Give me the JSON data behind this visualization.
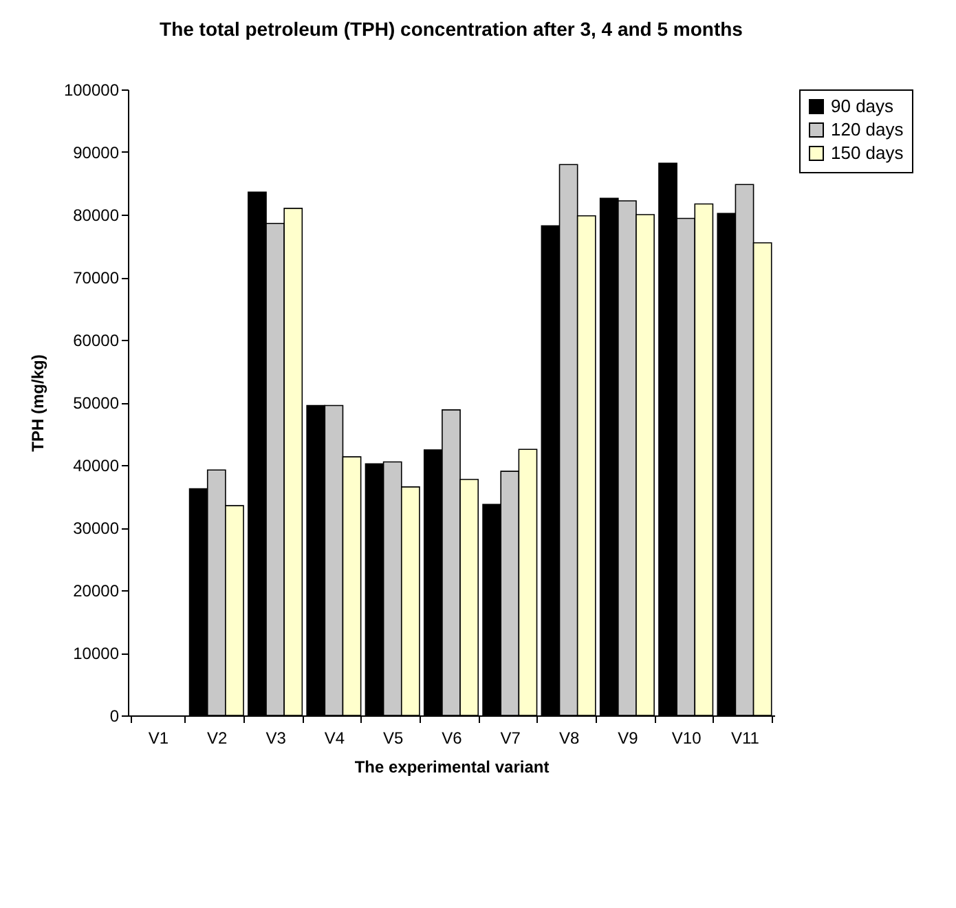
{
  "chart_data": {
    "type": "bar",
    "title": "The total petroleum (TPH) concentration after 3, 4 and 5 months",
    "xlabel": "The experimental variant",
    "ylabel": "TPH (mg/kg)",
    "categories": [
      "V1",
      "V2",
      "V3",
      "V4",
      "V5",
      "V6",
      "V7",
      "V8",
      "V9",
      "V10",
      "V11"
    ],
    "series": [
      {
        "name": "90 days",
        "color": "#000000",
        "values": [
          null,
          36200,
          83600,
          49500,
          40200,
          42400,
          33700,
          78200,
          82600,
          88200,
          80200
        ]
      },
      {
        "name": "120 days",
        "color": "#c8c8c8",
        "values": [
          null,
          39200,
          78600,
          49500,
          40500,
          48800,
          39000,
          88000,
          82200,
          79400,
          84800
        ]
      },
      {
        "name": "150 days",
        "color": "#ffffcc",
        "values": [
          null,
          33500,
          81000,
          41300,
          36500,
          37700,
          42500,
          79800,
          80000,
          81700,
          75500
        ]
      }
    ],
    "ylim": [
      0,
      100000
    ],
    "yticks": [
      0,
      10000,
      20000,
      30000,
      40000,
      50000,
      60000,
      70000,
      80000,
      90000,
      100000
    ],
    "grid": false,
    "legend": "right"
  }
}
